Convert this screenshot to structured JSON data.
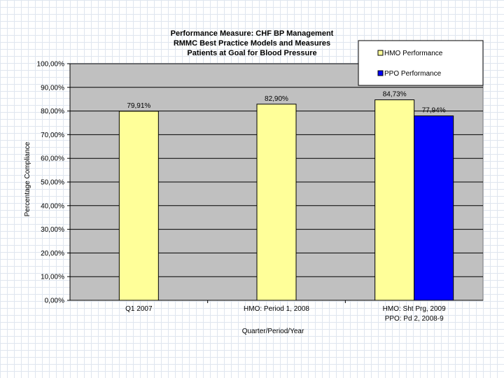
{
  "chart_data": {
    "type": "bar",
    "title": [
      "Performance Measure:  CHF BP Management",
      "RMMC Best Practice Models and Measures",
      "Patients at Goal for Blood Pressure"
    ],
    "ylabel": "Percentage Compliance",
    "xlabel": "Quarter/Period/Year",
    "ylim": [
      0,
      100
    ],
    "ytick_step": 10,
    "ytick_labels": [
      "0,00%",
      "10,00%",
      "20,00%",
      "30,00%",
      "40,00%",
      "50,00%",
      "60,00%",
      "70,00%",
      "80,00%",
      "90,00%",
      "100,00%"
    ],
    "grid": true,
    "legend_position": "top-right",
    "categories": [
      [
        "Q1 2007"
      ],
      [
        "HMO: Period 1, 2008"
      ],
      [
        "HMO:  Sht Prg, 2009",
        "PPO:  Pd 2, 2008-9"
      ]
    ],
    "series": [
      {
        "name": "HMO Performance",
        "color": "#ffff99",
        "values": [
          79.91,
          82.9,
          84.73
        ],
        "labels": [
          "79,91%",
          "82,90%",
          "84,73%"
        ]
      },
      {
        "name": "PPO Performance",
        "color": "#0000ff",
        "values": [
          null,
          null,
          77.94
        ],
        "labels": [
          "",
          "",
          "77,94%"
        ]
      }
    ],
    "plot_background": "#c0c0c0"
  }
}
